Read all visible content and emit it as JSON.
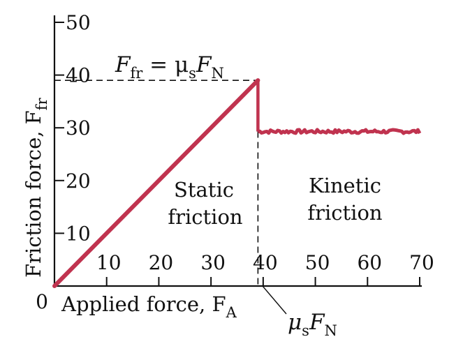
{
  "chart_data": {
    "type": "line",
    "xlabel": "Applied force, F",
    "xlabel_sub": "A",
    "ylabel": "Friction force, F",
    "ylabel_sub": "fr",
    "origin_label": "0",
    "xlim": [
      0,
      70
    ],
    "ylim": [
      0,
      50
    ],
    "x_ticks": [
      10,
      20,
      30,
      40,
      50,
      60,
      70
    ],
    "y_ticks": [
      10,
      20,
      30,
      40,
      50
    ],
    "series": [
      {
        "color": "#c0334f",
        "segments": [
          {
            "kind": "static",
            "x": [
              0,
              39
            ],
            "y": [
              0,
              39
            ]
          },
          {
            "kind": "drop",
            "x": [
              39,
              39
            ],
            "y": [
              39,
              29.3
            ]
          },
          {
            "kind": "kinetic",
            "x_range": [
              39,
              70
            ],
            "y": 29.3,
            "noise": 0.35
          }
        ]
      }
    ],
    "reference_lines": [
      {
        "orientation": "horizontal",
        "value": 39,
        "style": "dashed"
      },
      {
        "orientation": "vertical",
        "value": 39,
        "style": "dashed"
      }
    ],
    "annotations": {
      "static_max": {
        "main": "F",
        "sub1": "fr",
        "eq": " = μ",
        "sub2": "s",
        "main2": "F",
        "sub3": "N"
      },
      "threshold": {
        "main": "μ",
        "sub1": "s",
        "main2": "F",
        "sub2": "N"
      },
      "static_region": [
        "Static",
        "friction"
      ],
      "kinetic_region": [
        "Kinetic",
        "friction"
      ]
    }
  }
}
